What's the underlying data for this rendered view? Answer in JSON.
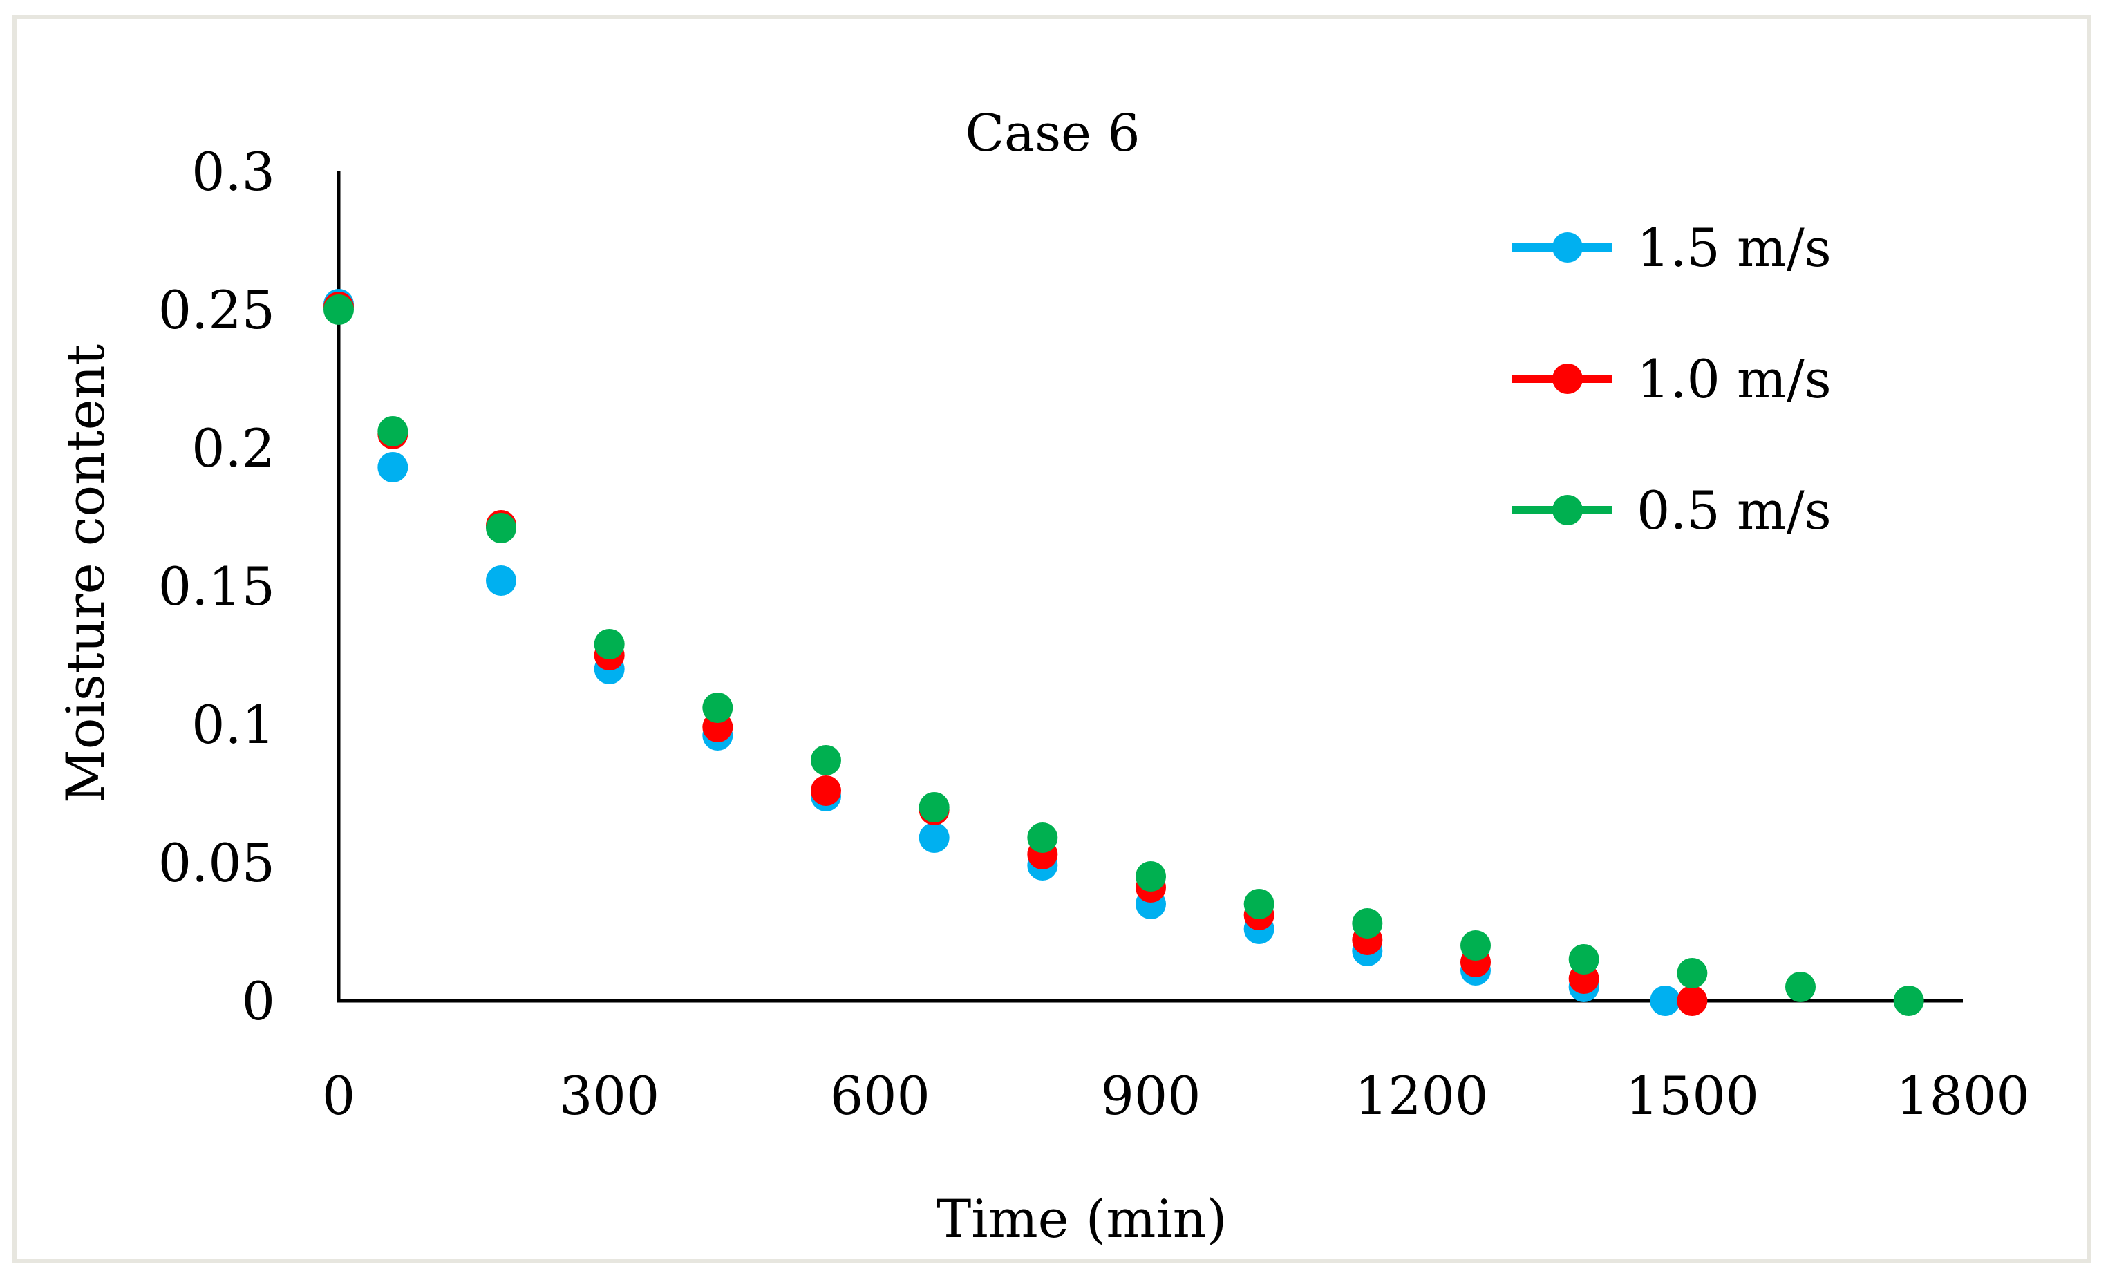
{
  "chart_data": {
    "type": "scatter",
    "title": "Case 6",
    "xlabel": "Time (min)",
    "ylabel": "Moisture content",
    "xlim": [
      0,
      1800
    ],
    "ylim": [
      0,
      0.3
    ],
    "x_ticks": [
      "0",
      "300",
      "600",
      "900",
      "1200",
      "1500",
      "1800"
    ],
    "y_ticks": [
      "0",
      "0.05",
      "0.1",
      "0.15",
      "0.2",
      "0.25",
      "0.3"
    ],
    "grid": false,
    "legend_position": "top-right",
    "series": [
      {
        "name": "1.5 m/s",
        "color": "#00b0f0",
        "x": [
          0,
          60,
          180,
          300,
          420,
          540,
          660,
          780,
          900,
          1020,
          1140,
          1260,
          1380,
          1470
        ],
        "y": [
          0.252,
          0.193,
          0.152,
          0.12,
          0.096,
          0.074,
          0.059,
          0.049,
          0.035,
          0.026,
          0.018,
          0.011,
          0.005,
          0.0
        ]
      },
      {
        "name": "1.0 m/s",
        "color": "#ff0000",
        "x": [
          0,
          60,
          180,
          300,
          420,
          540,
          660,
          780,
          900,
          1020,
          1140,
          1260,
          1380,
          1500
        ],
        "y": [
          0.251,
          0.205,
          0.172,
          0.125,
          0.099,
          0.076,
          0.069,
          0.053,
          0.041,
          0.031,
          0.022,
          0.014,
          0.008,
          0.0
        ]
      },
      {
        "name": "0.5 m/s",
        "color": "#00b050",
        "x": [
          0,
          60,
          180,
          300,
          420,
          540,
          660,
          780,
          900,
          1020,
          1140,
          1260,
          1380,
          1500,
          1620,
          1740
        ],
        "y": [
          0.25,
          0.206,
          0.171,
          0.129,
          0.106,
          0.087,
          0.07,
          0.059,
          0.045,
          0.035,
          0.028,
          0.02,
          0.015,
          0.01,
          0.005,
          0.0
        ]
      }
    ]
  }
}
